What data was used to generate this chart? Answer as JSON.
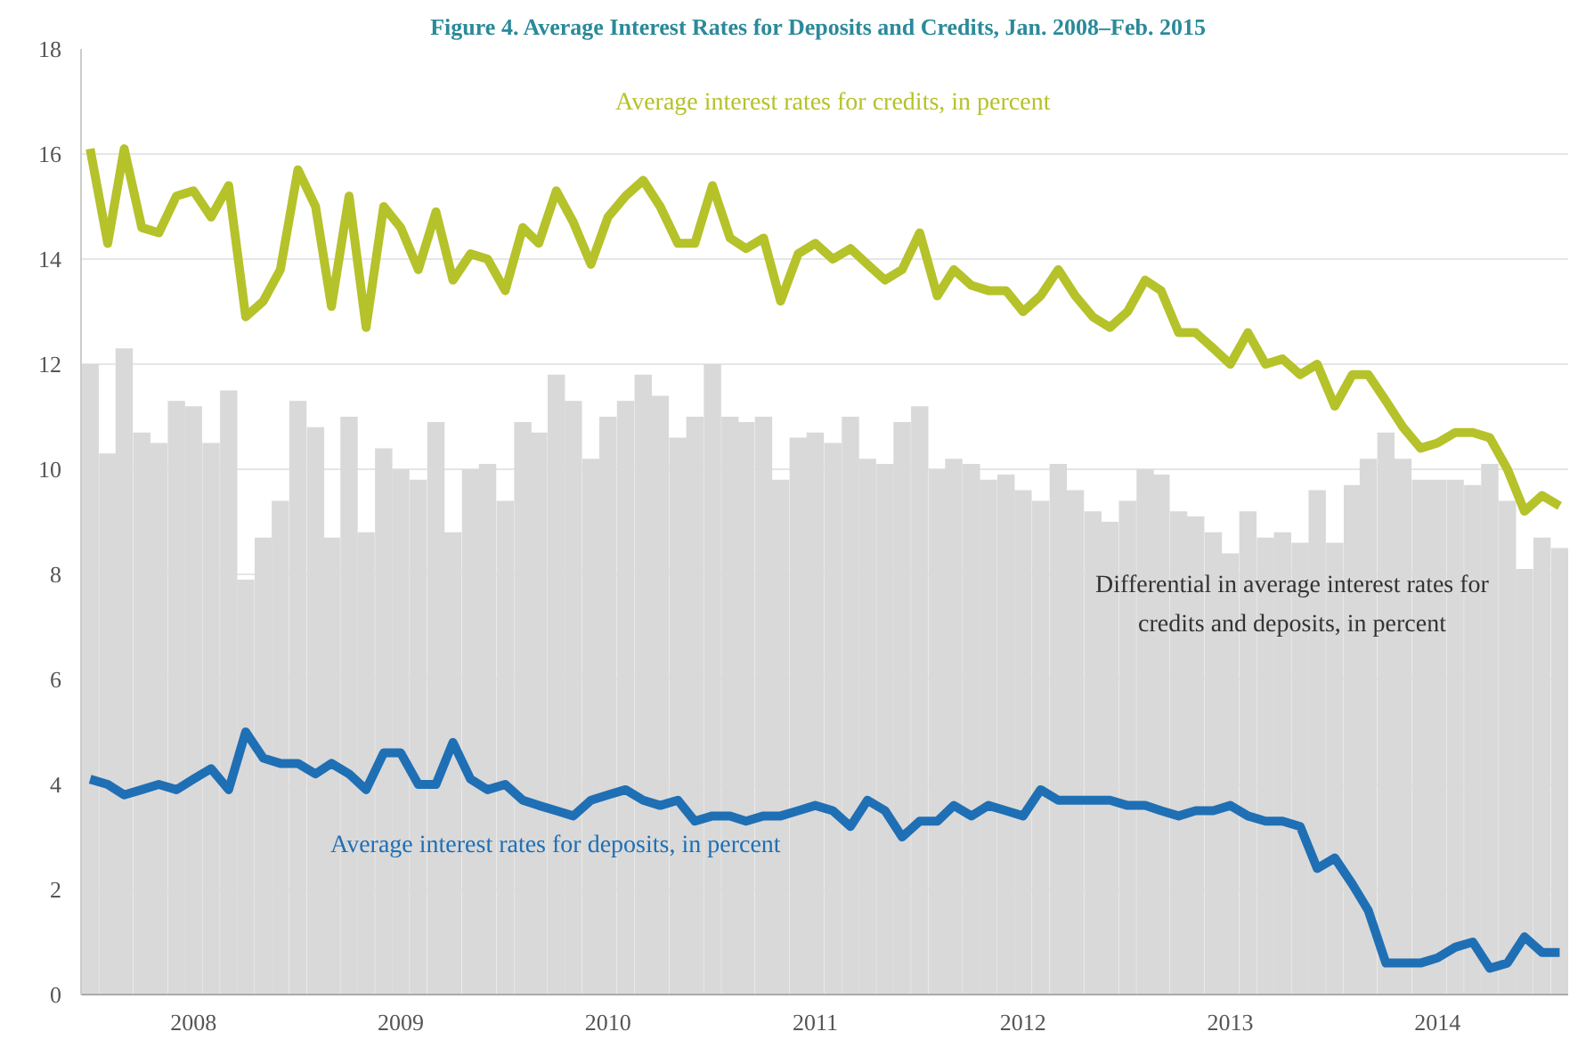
{
  "chart_data": {
    "type": "bar",
    "title": "Figure 4.   Average Interest Rates for Deposits and Credits, Jan. 2008–Feb. 2015",
    "x": [
      "2008-01",
      "2008-02",
      "2008-03",
      "2008-04",
      "2008-05",
      "2008-06",
      "2008-07",
      "2008-08",
      "2008-09",
      "2008-10",
      "2008-11",
      "2008-12",
      "2009-01",
      "2009-02",
      "2009-03",
      "2009-04",
      "2009-05",
      "2009-06",
      "2009-07",
      "2009-08",
      "2009-09",
      "2009-10",
      "2009-11",
      "2009-12",
      "2010-01",
      "2010-02",
      "2010-03",
      "2010-04",
      "2010-05",
      "2010-06",
      "2010-07",
      "2010-08",
      "2010-09",
      "2010-10",
      "2010-11",
      "2010-12",
      "2011-01",
      "2011-02",
      "2011-03",
      "2011-04",
      "2011-05",
      "2011-06",
      "2011-07",
      "2011-08",
      "2011-09",
      "2011-10",
      "2011-11",
      "2011-12",
      "2012-01",
      "2012-02",
      "2012-03",
      "2012-04",
      "2012-05",
      "2012-06",
      "2012-07",
      "2012-08",
      "2012-09",
      "2012-10",
      "2012-11",
      "2012-12",
      "2013-01",
      "2013-02",
      "2013-03",
      "2013-04",
      "2013-05",
      "2013-06",
      "2013-07",
      "2013-08",
      "2013-09",
      "2013-10",
      "2013-11",
      "2013-12",
      "2014-01",
      "2014-02",
      "2014-03",
      "2014-04",
      "2014-05",
      "2014-06",
      "2014-07",
      "2014-08",
      "2014-09",
      "2014-10",
      "2014-11",
      "2014-12",
      "2015-01",
      "2015-02"
    ],
    "series": [
      {
        "name": "Differential in average interest rates for credits and deposits, in percent",
        "color": "#d9d9d9",
        "values": [
          12.0,
          10.3,
          12.3,
          10.7,
          10.5,
          11.3,
          11.2,
          10.5,
          11.5,
          7.9,
          8.7,
          9.4,
          11.3,
          10.8,
          8.7,
          11.0,
          8.8,
          10.4,
          10.0,
          9.8,
          10.9,
          8.8,
          10.0,
          10.1,
          9.4,
          10.9,
          10.7,
          11.8,
          11.3,
          10.2,
          11.0,
          11.3,
          11.8,
          11.4,
          10.6,
          11.0,
          12.0,
          11.0,
          10.9,
          11.0,
          9.8,
          10.6,
          10.7,
          10.5,
          11.0,
          10.2,
          10.1,
          10.9,
          11.2,
          10.0,
          10.2,
          10.1,
          9.8,
          9.9,
          9.6,
          9.4,
          10.1,
          9.6,
          9.2,
          9.0,
          9.4,
          10.0,
          9.9,
          9.2,
          9.1,
          8.8,
          8.4,
          9.2,
          8.7,
          8.8,
          8.6,
          9.6,
          8.6,
          9.7,
          10.2,
          10.7,
          10.2,
          9.8,
          9.8,
          9.8,
          9.7,
          10.1,
          9.4,
          8.1,
          8.7,
          8.5
        ]
      },
      {
        "name": "Average interest rates for credits, in percent",
        "type": "line",
        "color": "#b5c22a",
        "values": [
          16.1,
          14.3,
          16.1,
          14.6,
          14.5,
          15.2,
          15.3,
          14.8,
          15.4,
          12.9,
          13.2,
          13.8,
          15.7,
          15.0,
          13.1,
          15.2,
          12.7,
          15.0,
          14.6,
          13.8,
          14.9,
          13.6,
          14.1,
          14.0,
          13.4,
          14.6,
          14.3,
          15.3,
          14.7,
          13.9,
          14.8,
          15.2,
          15.5,
          15.0,
          14.3,
          14.3,
          15.4,
          14.4,
          14.2,
          14.4,
          13.2,
          14.1,
          14.3,
          14.0,
          14.2,
          13.9,
          13.6,
          13.8,
          14.5,
          13.3,
          13.8,
          13.5,
          13.4,
          13.4,
          13.0,
          13.3,
          13.8,
          13.3,
          12.9,
          12.7,
          13.0,
          13.6,
          13.4,
          12.6,
          12.6,
          12.3,
          12.0,
          12.6,
          12.0,
          12.1,
          11.8,
          12.0,
          11.2,
          11.8,
          11.8,
          11.3,
          10.8,
          10.4,
          10.5,
          10.7,
          10.7,
          10.6,
          10.0,
          9.2,
          9.5,
          9.3
        ]
      },
      {
        "name": "Average interest rates for deposits, in percent",
        "type": "line",
        "color": "#1f6fb5",
        "values": [
          4.1,
          4.0,
          3.8,
          3.9,
          4.0,
          3.9,
          4.1,
          4.3,
          3.9,
          5.0,
          4.5,
          4.4,
          4.4,
          4.2,
          4.4,
          4.2,
          3.9,
          4.6,
          4.6,
          4.0,
          4.0,
          4.8,
          4.1,
          3.9,
          4.0,
          3.7,
          3.6,
          3.5,
          3.4,
          3.7,
          3.8,
          3.9,
          3.7,
          3.6,
          3.7,
          3.3,
          3.4,
          3.4,
          3.3,
          3.4,
          3.4,
          3.5,
          3.6,
          3.5,
          3.2,
          3.7,
          3.5,
          3.0,
          3.3,
          3.3,
          3.6,
          3.4,
          3.6,
          3.5,
          3.4,
          3.9,
          3.7,
          3.7,
          3.7,
          3.7,
          3.6,
          3.6,
          3.5,
          3.4,
          3.5,
          3.5,
          3.6,
          3.4,
          3.3,
          3.3,
          3.2,
          2.4,
          2.6,
          2.1,
          1.6,
          0.6,
          0.6,
          0.6,
          0.7,
          0.9,
          1.0,
          0.5,
          0.6,
          1.1,
          0.8,
          0.8
        ]
      }
    ],
    "xlim": [
      "2007-12-16",
      "2015-02-16"
    ],
    "xticks": [
      {
        "value": "2008-07-01",
        "label": "2008"
      },
      {
        "value": "2009-07-01",
        "label": "2009"
      },
      {
        "value": "2010-07-01",
        "label": "2010"
      },
      {
        "value": "2011-07-01",
        "label": "2011"
      },
      {
        "value": "2012-07-01",
        "label": "2012"
      },
      {
        "value": "2013-07-01",
        "label": "2013"
      },
      {
        "value": "2014-07-01",
        "label": "2014"
      }
    ],
    "ylim": [
      0,
      18
    ],
    "yticks": [
      0,
      2,
      4,
      6,
      8,
      10,
      12,
      14,
      16,
      18
    ],
    "grid": "y",
    "line_style": "solid",
    "marker": "none"
  }
}
